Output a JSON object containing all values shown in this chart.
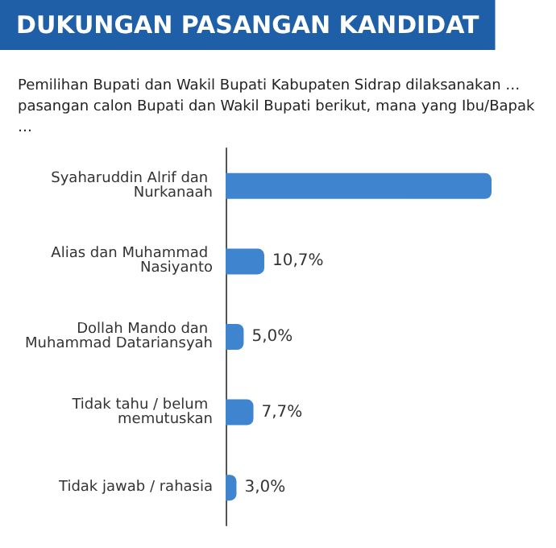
{
  "chart_data": {
    "type": "bar",
    "orientation": "horizontal",
    "title": "DUKUNGAN PASANGAN KANDIDAT",
    "subtitle": "Pemilihan Bupati dan Wakil Bupati Kabupaten Sidrap dilaksanakan … pasangan calon Bupati dan Wakil Bupati berikut, mana yang Ibu/Bapak …",
    "categories": [
      "Syaharuddin Alrif dan Nurkanaah",
      "Alias dan Muhammad Nasiyanto",
      "Dollah Mando dan Muhammad Datariansyah",
      "Tidak tahu / belum memutuskan",
      "Tidak jawab / rahasia"
    ],
    "values": [
      73.6,
      10.7,
      5.0,
      7.7,
      3.0
    ],
    "value_labels": [
      null,
      "10,7%",
      "5,0%",
      "7,7%",
      "3,0%"
    ],
    "color": "#3f84cf"
  }
}
